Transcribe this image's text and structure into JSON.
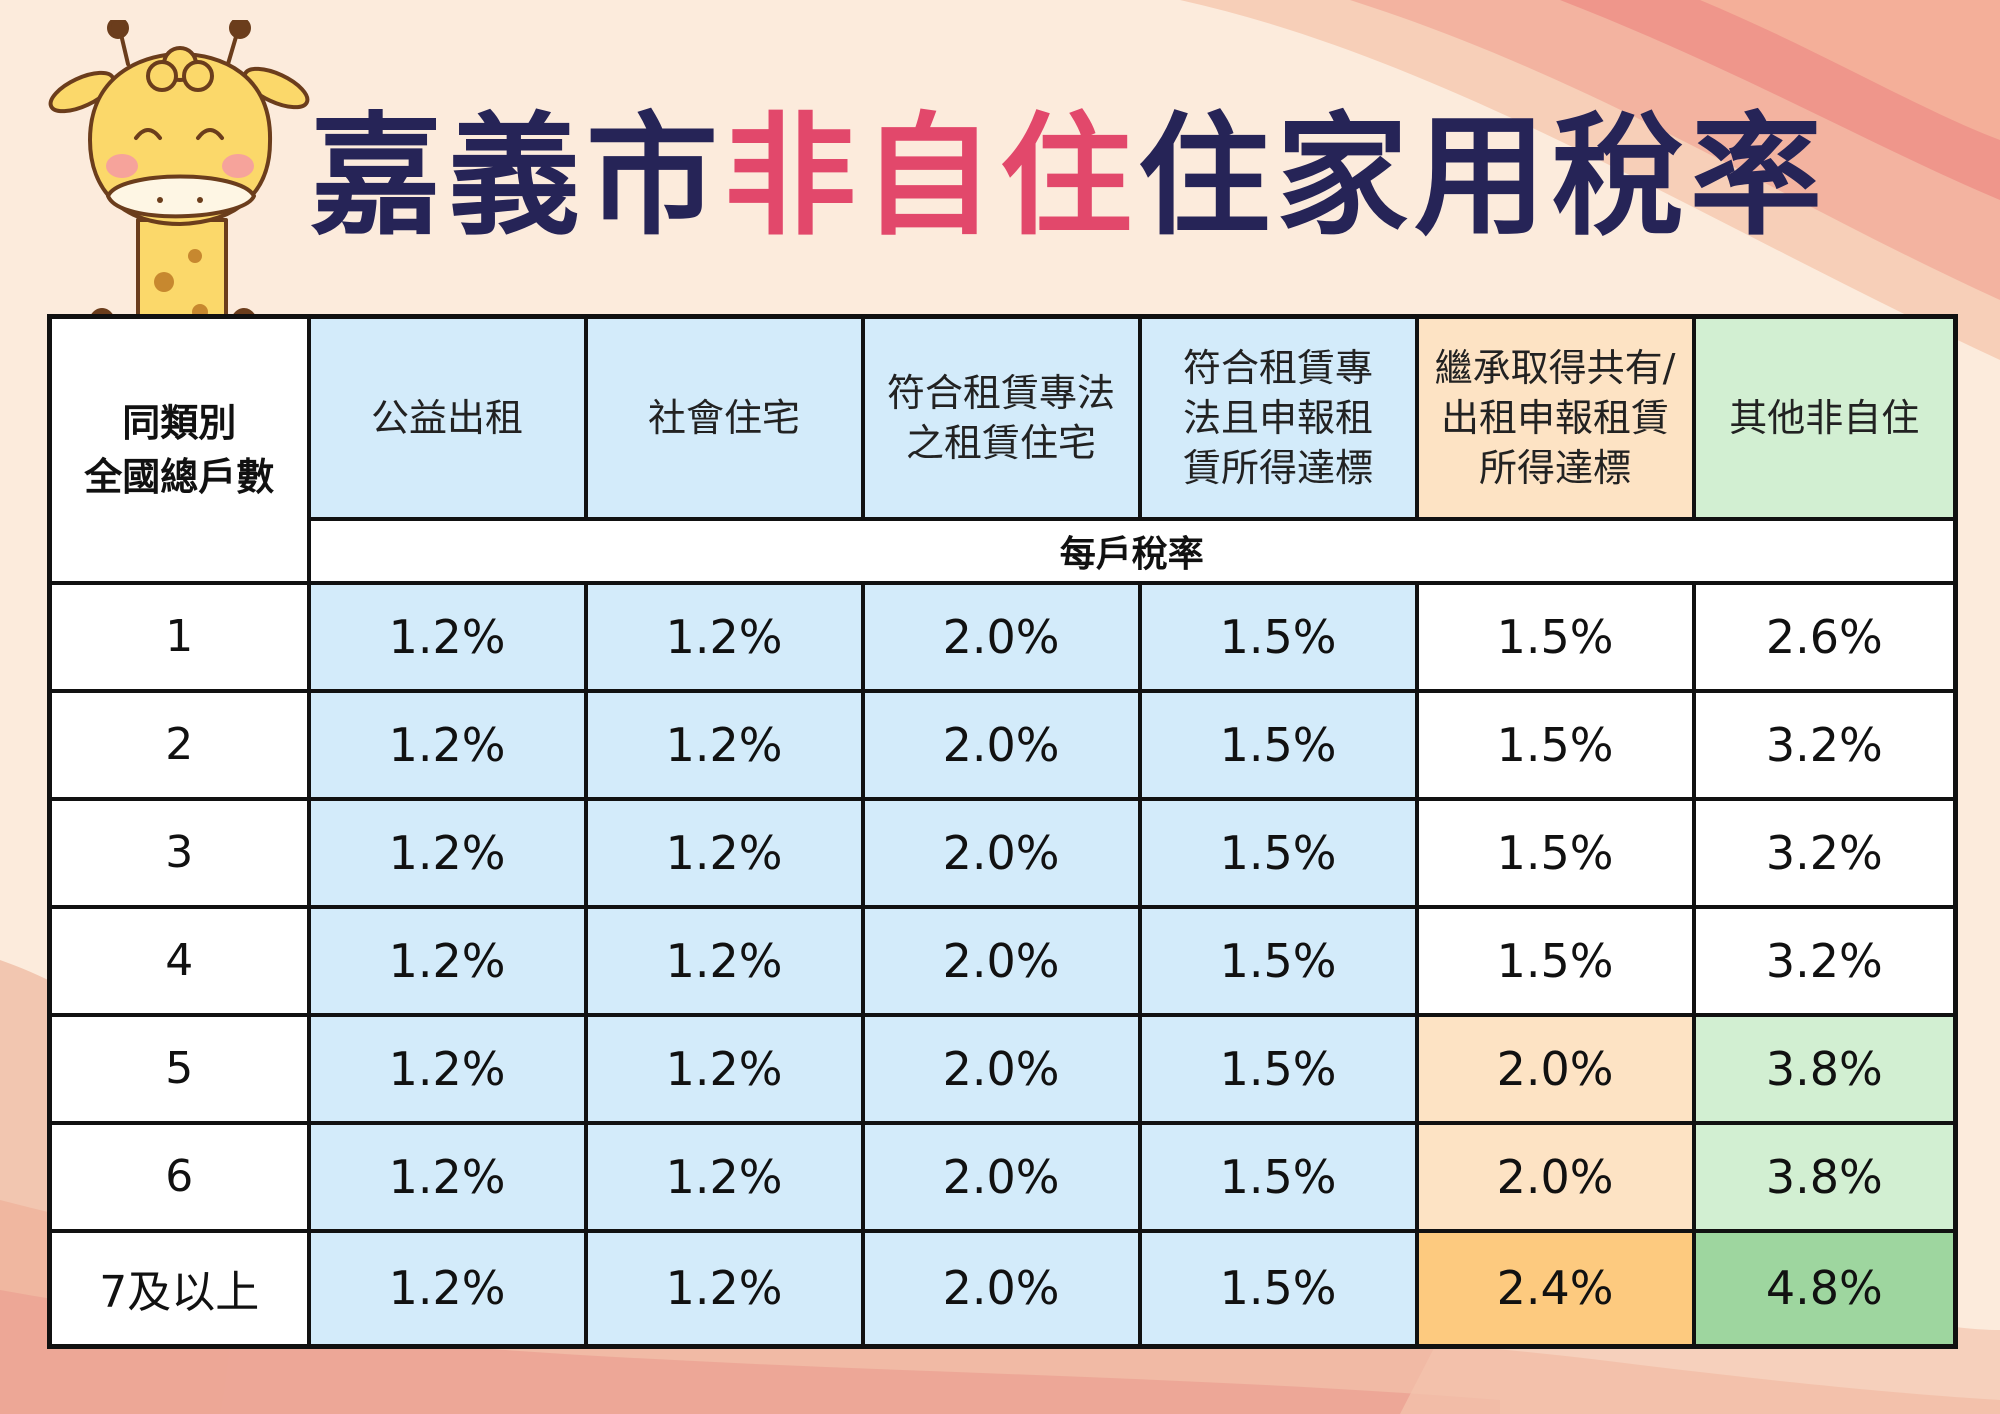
{
  "title": {
    "part1": "嘉義市",
    "highlight": "非自住",
    "part2": "住家用稅率"
  },
  "colors": {
    "background": "#fcebdc",
    "title_dark": "#262457",
    "title_pink": "#e2486b",
    "cell_blue": "#d3ebfa",
    "cell_peach": "#fde3c4",
    "cell_orange": "#fdca7f",
    "cell_light_green": "#d2efd2",
    "cell_green": "#9ed69f"
  },
  "mascot_icon": "giraffe-icon",
  "table": {
    "corner_header": [
      "同類別",
      "全國總戶數"
    ],
    "columns": [
      {
        "lines": [
          "公益出租"
        ]
      },
      {
        "lines": [
          "社會住宅"
        ]
      },
      {
        "lines": [
          "符合租賃專法",
          "之租賃住宅"
        ]
      },
      {
        "lines": [
          "符合租賃專",
          "法且申報租",
          "賃所得達標"
        ]
      },
      {
        "lines": [
          "繼承取得共有/",
          "出租申報租賃",
          "所得達標"
        ]
      },
      {
        "lines": [
          "其他非自住"
        ]
      }
    ],
    "sub_header": "每戶稅率",
    "rows": [
      {
        "label": "1",
        "values": [
          "1.2%",
          "1.2%",
          "2.0%",
          "1.5%",
          "1.5%",
          "2.6%"
        ]
      },
      {
        "label": "2",
        "values": [
          "1.2%",
          "1.2%",
          "2.0%",
          "1.5%",
          "1.5%",
          "3.2%"
        ]
      },
      {
        "label": "3",
        "values": [
          "1.2%",
          "1.2%",
          "2.0%",
          "1.5%",
          "1.5%",
          "3.2%"
        ]
      },
      {
        "label": "4",
        "values": [
          "1.2%",
          "1.2%",
          "2.0%",
          "1.5%",
          "1.5%",
          "3.2%"
        ]
      },
      {
        "label": "5",
        "values": [
          "1.2%",
          "1.2%",
          "2.0%",
          "1.5%",
          "2.0%",
          "3.8%"
        ]
      },
      {
        "label": "6",
        "values": [
          "1.2%",
          "1.2%",
          "2.0%",
          "1.5%",
          "2.0%",
          "3.8%"
        ]
      },
      {
        "label": "7及以上",
        "values": [
          "1.2%",
          "1.2%",
          "2.0%",
          "1.5%",
          "2.4%",
          "4.8%"
        ]
      }
    ]
  }
}
